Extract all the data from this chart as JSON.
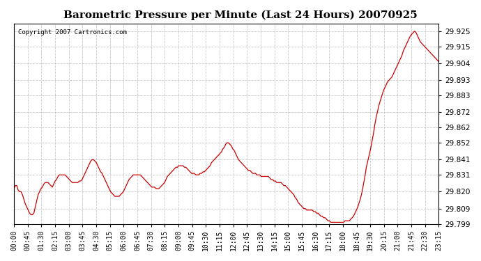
{
  "title": "Barometric Pressure per Minute (Last 24 Hours) 20070925",
  "copyright": "Copyright 2007 Cartronics.com",
  "line_color": "#cc0000",
  "bg_color": "#ffffff",
  "plot_bg_color": "#ffffff",
  "grid_color": "#bbbbbb",
  "ylim": [
    29.799,
    29.93
  ],
  "yticks": [
    29.799,
    29.809,
    29.82,
    29.831,
    29.841,
    29.852,
    29.862,
    29.872,
    29.883,
    29.893,
    29.904,
    29.915,
    29.925
  ],
  "xtick_labels": [
    "00:00",
    "00:45",
    "01:30",
    "02:15",
    "03:00",
    "03:45",
    "04:30",
    "05:15",
    "06:00",
    "06:45",
    "07:30",
    "08:15",
    "09:00",
    "09:45",
    "10:30",
    "11:15",
    "12:00",
    "12:45",
    "13:30",
    "14:15",
    "15:00",
    "15:45",
    "16:30",
    "17:15",
    "18:00",
    "18:45",
    "19:30",
    "20:15",
    "21:00",
    "21:45",
    "22:30",
    "23:15"
  ],
  "data_y": [
    29.822,
    29.824,
    29.824,
    29.821,
    29.82,
    29.82,
    29.818,
    29.815,
    29.812,
    29.81,
    29.808,
    29.806,
    29.805,
    29.805,
    29.806,
    29.81,
    29.814,
    29.818,
    29.82,
    29.822,
    29.823,
    29.825,
    29.826,
    29.826,
    29.826,
    29.825,
    29.824,
    29.823,
    29.825,
    29.827,
    29.828,
    29.83,
    29.831,
    29.831,
    29.831,
    29.831,
    29.831,
    29.83,
    29.829,
    29.828,
    29.827,
    29.826,
    29.826,
    29.826,
    29.826,
    29.826,
    29.827,
    29.827,
    29.828,
    29.83,
    29.832,
    29.834,
    29.836,
    29.838,
    29.84,
    29.841,
    29.841,
    29.84,
    29.839,
    29.837,
    29.835,
    29.833,
    29.832,
    29.83,
    29.828,
    29.826,
    29.824,
    29.822,
    29.82,
    29.819,
    29.818,
    29.817,
    29.817,
    29.817,
    29.817,
    29.818,
    29.819,
    29.82,
    29.822,
    29.824,
    29.826,
    29.828,
    29.829,
    29.83,
    29.831,
    29.831,
    29.831,
    29.831,
    29.831,
    29.831,
    29.83,
    29.829,
    29.828,
    29.827,
    29.826,
    29.825,
    29.824,
    29.823,
    29.823,
    29.823,
    29.822,
    29.822,
    29.822,
    29.823,
    29.824,
    29.825,
    29.826,
    29.828,
    29.83,
    29.831,
    29.832,
    29.833,
    29.834,
    29.835,
    29.836,
    29.836,
    29.837,
    29.837,
    29.837,
    29.837,
    29.836,
    29.836,
    29.835,
    29.834,
    29.833,
    29.832,
    29.832,
    29.832,
    29.831,
    29.831,
    29.831,
    29.832,
    29.832,
    29.833,
    29.833,
    29.834,
    29.835,
    29.836,
    29.837,
    29.839,
    29.84,
    29.841,
    29.842,
    29.843,
    29.844,
    29.845,
    29.846,
    29.848,
    29.849,
    29.851,
    29.852,
    29.852,
    29.851,
    29.85,
    29.848,
    29.847,
    29.845,
    29.843,
    29.841,
    29.84,
    29.839,
    29.838,
    29.837,
    29.836,
    29.835,
    29.834,
    29.834,
    29.833,
    29.832,
    29.832,
    29.832,
    29.831,
    29.831,
    29.831,
    29.83,
    29.83,
    29.83,
    29.83,
    29.83,
    29.83,
    29.829,
    29.828,
    29.828,
    29.827,
    29.827,
    29.826,
    29.826,
    29.826,
    29.826,
    29.825,
    29.824,
    29.824,
    29.823,
    29.822,
    29.821,
    29.82,
    29.819,
    29.818,
    29.816,
    29.815,
    29.813,
    29.812,
    29.811,
    29.81,
    29.809,
    29.809,
    29.808,
    29.808,
    29.808,
    29.808,
    29.808,
    29.807,
    29.807,
    29.806,
    29.806,
    29.805,
    29.804,
    29.804,
    29.803,
    29.803,
    29.802,
    29.801,
    29.801,
    29.8,
    29.8,
    29.8,
    29.8,
    29.8,
    29.8,
    29.8,
    29.8,
    29.8,
    29.8,
    29.801,
    29.801,
    29.801,
    29.801,
    29.802,
    29.803,
    29.804,
    29.806,
    29.808,
    29.81,
    29.813,
    29.816,
    29.82,
    29.825,
    29.83,
    29.836,
    29.84,
    29.844,
    29.848,
    29.853,
    29.858,
    29.864,
    29.869,
    29.873,
    29.877,
    29.88,
    29.883,
    29.886,
    29.888,
    29.89,
    29.892,
    29.893,
    29.894,
    29.895,
    29.897,
    29.899,
    29.901,
    29.903,
    29.905,
    29.907,
    29.909,
    29.912,
    29.914,
    29.916,
    29.918,
    29.92,
    29.922,
    29.923,
    29.924,
    29.925,
    29.924,
    29.922,
    29.92,
    29.918,
    29.917,
    29.916,
    29.915,
    29.914,
    29.913,
    29.912,
    29.911,
    29.91,
    29.909,
    29.908,
    29.907,
    29.906,
    29.905
  ]
}
